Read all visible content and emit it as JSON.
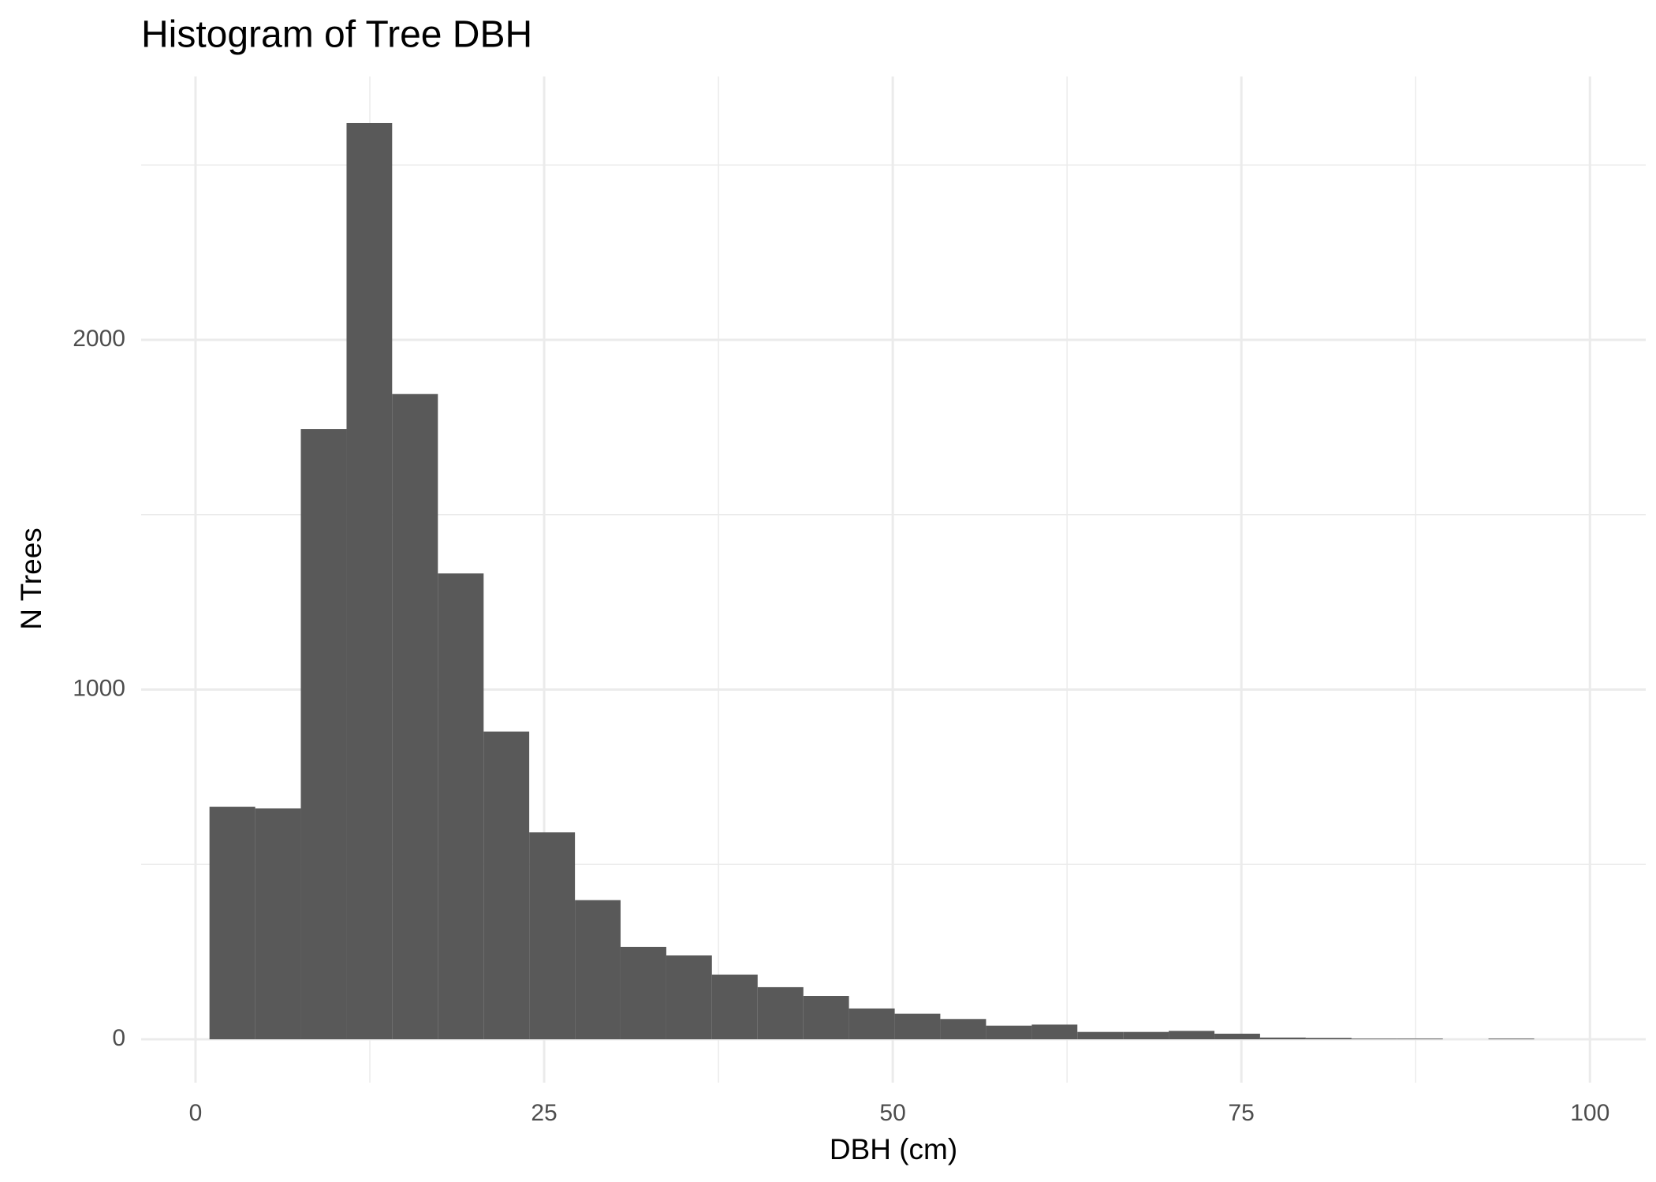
{
  "chart_data": {
    "type": "histogram",
    "title": "Histogram of Tree DBH",
    "x_label": "DBH (cm)",
    "y_label": "N Trees",
    "bins": [
      1.0,
      4.28,
      7.55,
      10.83,
      14.1,
      17.38,
      20.66,
      23.93,
      27.21,
      30.48,
      33.76,
      37.03,
      40.31,
      43.59,
      46.86,
      50.14,
      53.41,
      56.69,
      59.97,
      63.24,
      66.52,
      69.79,
      73.07,
      76.34,
      79.62,
      82.9,
      86.17,
      89.45,
      92.72,
      96.0,
      99.28
    ],
    "values": [
      665,
      660,
      1745,
      2620,
      1845,
      1332,
      880,
      592,
      398,
      264,
      240,
      185,
      149,
      124,
      88,
      73,
      58,
      39,
      42,
      21,
      21,
      24,
      16,
      5,
      4,
      2,
      2,
      0,
      2,
      0
    ],
    "color": "#595959",
    "xlim": [
      -3.9,
      104.0
    ],
    "ylim": [
      -124,
      2753
    ],
    "xticks": [
      0,
      25,
      50,
      75,
      100
    ],
    "yticks": [
      0,
      1000,
      2000
    ],
    "minor_xticks": [
      12.5,
      37.5,
      62.5,
      87.5
    ],
    "minor_yticks": [
      500,
      1500,
      2500
    ],
    "grid": true
  }
}
